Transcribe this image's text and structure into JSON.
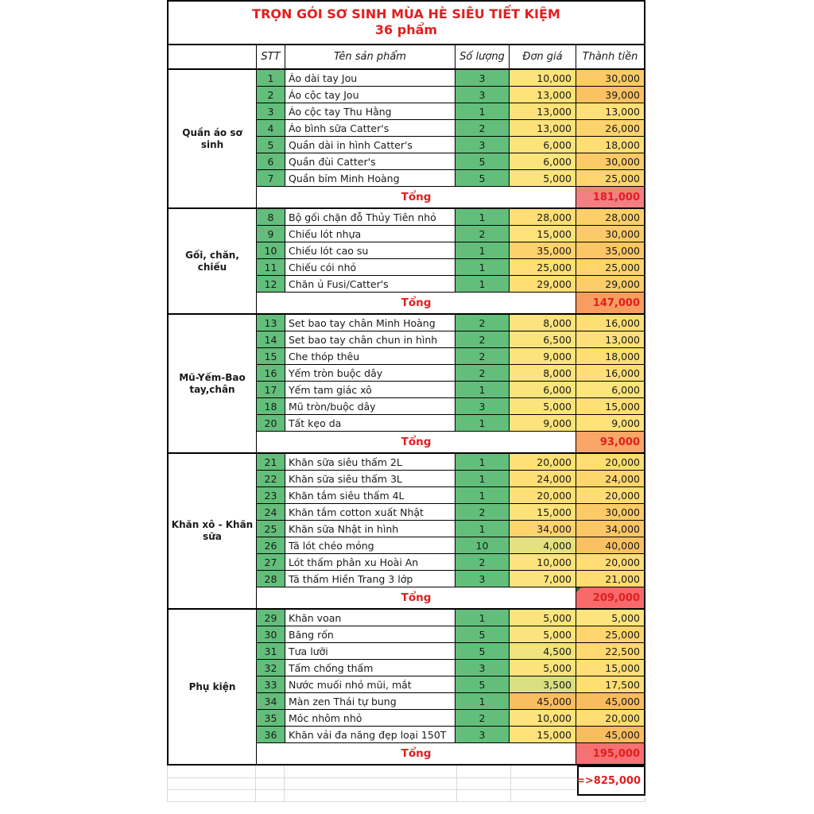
{
  "title": {
    "line1": "TRỌN GÓI SƠ SINH MÙA HÈ SIÊU TIẾT KIỆM",
    "line2": "36 phẩm"
  },
  "header": {
    "group": "",
    "stt": "STT",
    "name": "Tên sản phẩm",
    "qty": "Số lượng",
    "unit": "Đơn giá",
    "amount": "Thành tiền"
  },
  "labels": {
    "total": "Tổng",
    "grand_total": "=>825,000"
  },
  "colors": {
    "red_text": "#E01F1F",
    "green_cell": "#63BE7B",
    "border": "#000000",
    "faint_grid": "#D9D9D9",
    "unit_scale": [
      [
        3500,
        "#D9DF81"
      ],
      [
        5000,
        "#FCE47D"
      ],
      [
        29000,
        "#FFDE74"
      ],
      [
        45000,
        "#FABD60"
      ]
    ],
    "amount_scale": [
      [
        5000,
        "#FEE47D"
      ],
      [
        21000,
        "#FFDC72"
      ],
      [
        30000,
        "#FCCB67"
      ],
      [
        45000,
        "#F9BC5F"
      ]
    ]
  },
  "groups": [
    {
      "label": "Quần áo sơ sinh",
      "total": "181,000",
      "total_bg": "#F47F81",
      "rows": [
        {
          "stt": "1",
          "name": "Áo dài tay Jou",
          "qty": "3",
          "unit": "10,000",
          "amount": "30,000"
        },
        {
          "stt": "2",
          "name": "Áo cộc tay Jou",
          "qty": "3",
          "unit": "13,000",
          "amount": "39,000"
        },
        {
          "stt": "3",
          "name": "Áo cộc tay Thu Hằng",
          "qty": "1",
          "unit": "13,000",
          "amount": "13,000"
        },
        {
          "stt": "4",
          "name": "Áo bình sữa Catter's",
          "qty": "2",
          "unit": "13,000",
          "amount": "26,000"
        },
        {
          "stt": "5",
          "name": "Quần dài in hình Catter's",
          "qty": "3",
          "unit": "6,000",
          "amount": "18,000"
        },
        {
          "stt": "6",
          "name": "Quần đùi Catter's",
          "qty": "5",
          "unit": "6,000",
          "amount": "30,000"
        },
        {
          "stt": "7",
          "name": "Quần bỉm Minh Hoàng",
          "qty": "5",
          "unit": "5,000",
          "amount": "25,000"
        }
      ]
    },
    {
      "label": "Gối, chăn, chiếu",
      "total": "147,000",
      "total_bg": "#F89D60",
      "rows": [
        {
          "stt": "8",
          "name": "Bộ gối chặn đỗ Thủy Tiên nhỏ",
          "qty": "1",
          "unit": "28,000",
          "amount": "28,000"
        },
        {
          "stt": "9",
          "name": "Chiếu lót nhựa",
          "qty": "2",
          "unit": "15,000",
          "amount": "30,000"
        },
        {
          "stt": "10",
          "name": "Chiếu lót cao su",
          "qty": "1",
          "unit": "35,000",
          "amount": "35,000"
        },
        {
          "stt": "11",
          "name": "Chiếu cói nhỏ",
          "qty": "1",
          "unit": "25,000",
          "amount": "25,000"
        },
        {
          "stt": "12",
          "name": "Chăn ủ Fusi/Catter's",
          "qty": "1",
          "unit": "29,000",
          "amount": "29,000"
        }
      ]
    },
    {
      "label": "Mũ-Yếm-Bao tay,chân",
      "total": "93,000",
      "total_bg": "#F9A667",
      "rows": [
        {
          "stt": "13",
          "name": "Set bao tay chân Minh Hoàng",
          "qty": "2",
          "unit": "8,000",
          "amount": "16,000"
        },
        {
          "stt": "14",
          "name": "Set bao tay chân chun in hình",
          "qty": "2",
          "unit": "6,500",
          "amount": "13,000"
        },
        {
          "stt": "15",
          "name": "Che thóp thêu",
          "qty": "2",
          "unit": "9,000",
          "amount": "18,000"
        },
        {
          "stt": "16",
          "name": "Yếm tròn buộc dây",
          "qty": "2",
          "unit": "8,000",
          "amount": "16,000"
        },
        {
          "stt": "17",
          "name": "Yếm tam giác xô",
          "qty": "1",
          "unit": "6,000",
          "amount": "6,000"
        },
        {
          "stt": "18",
          "name": "Mũ tròn/buộc dây",
          "qty": "3",
          "unit": "5,000",
          "amount": "15,000"
        },
        {
          "stt": "20",
          "name": "Tất kẹo da",
          "qty": "1",
          "unit": "9,000",
          "amount": "9,000"
        }
      ]
    },
    {
      "label": "Khăn xô - Khăn sữa",
      "total": "209,000",
      "total_bg": "#F8696B",
      "flag": true,
      "rows": [
        {
          "stt": "21",
          "name": "Khăn sữa siêu thấm 2L",
          "qty": "1",
          "unit": "20,000",
          "amount": "20,000"
        },
        {
          "stt": "22",
          "name": "Khăn sữa siêu thấm 3L",
          "qty": "1",
          "unit": "24,000",
          "amount": "24,000"
        },
        {
          "stt": "23",
          "name": "Khăn tắm siêu thấm 4L",
          "qty": "1",
          "unit": "20,000",
          "amount": "20,000"
        },
        {
          "stt": "24",
          "name": "Khăn tắm cotton xuất Nhật",
          "qty": "2",
          "unit": "15,000",
          "amount": "30,000"
        },
        {
          "stt": "25",
          "name": "Khăn sữa Nhật in hình",
          "qty": "1",
          "unit": "34,000",
          "amount": "34,000"
        },
        {
          "stt": "26",
          "name": "Tã lót chéo mỏng",
          "qty": "10",
          "unit": "4,000",
          "amount": "40,000"
        },
        {
          "stt": "27",
          "name": "Lót thấm phân xu Hoài An",
          "qty": "2",
          "unit": "10,000",
          "amount": "20,000"
        },
        {
          "stt": "28",
          "name": "Tã thấm Hiền Trang 3 lớp",
          "qty": "3",
          "unit": "7,000",
          "amount": "21,000"
        }
      ]
    },
    {
      "label": "Phụ kiện",
      "total": "195,000",
      "total_bg": "#F57173",
      "rows": [
        {
          "stt": "29",
          "name": "Khăn voan",
          "qty": "1",
          "unit": "5,000",
          "amount": "5,000"
        },
        {
          "stt": "30",
          "name": "Băng rốn",
          "qty": "5",
          "unit": "5,000",
          "amount": "25,000"
        },
        {
          "stt": "31",
          "name": "Tưa lưỡi",
          "qty": "5",
          "unit": "4,500",
          "amount": "22,500"
        },
        {
          "stt": "32",
          "name": "Tấm chống thấm",
          "qty": "3",
          "unit": "5,000",
          "amount": "15,000"
        },
        {
          "stt": "33",
          "name": "Nước muối nhỏ mũi, mắt",
          "qty": "5",
          "unit": "3,500",
          "amount": "17,500"
        },
        {
          "stt": "34",
          "name": "Màn zen Thái tự bung",
          "qty": "1",
          "unit": "45,000",
          "amount": "45,000"
        },
        {
          "stt": "35",
          "name": "Móc nhôm nhỏ",
          "qty": "2",
          "unit": "10,000",
          "amount": "20,000"
        },
        {
          "stt": "36",
          "name": "Khăn vải đa năng đẹp loại 150T",
          "qty": "3",
          "unit": "15,000",
          "amount": "45,000"
        }
      ]
    }
  ]
}
